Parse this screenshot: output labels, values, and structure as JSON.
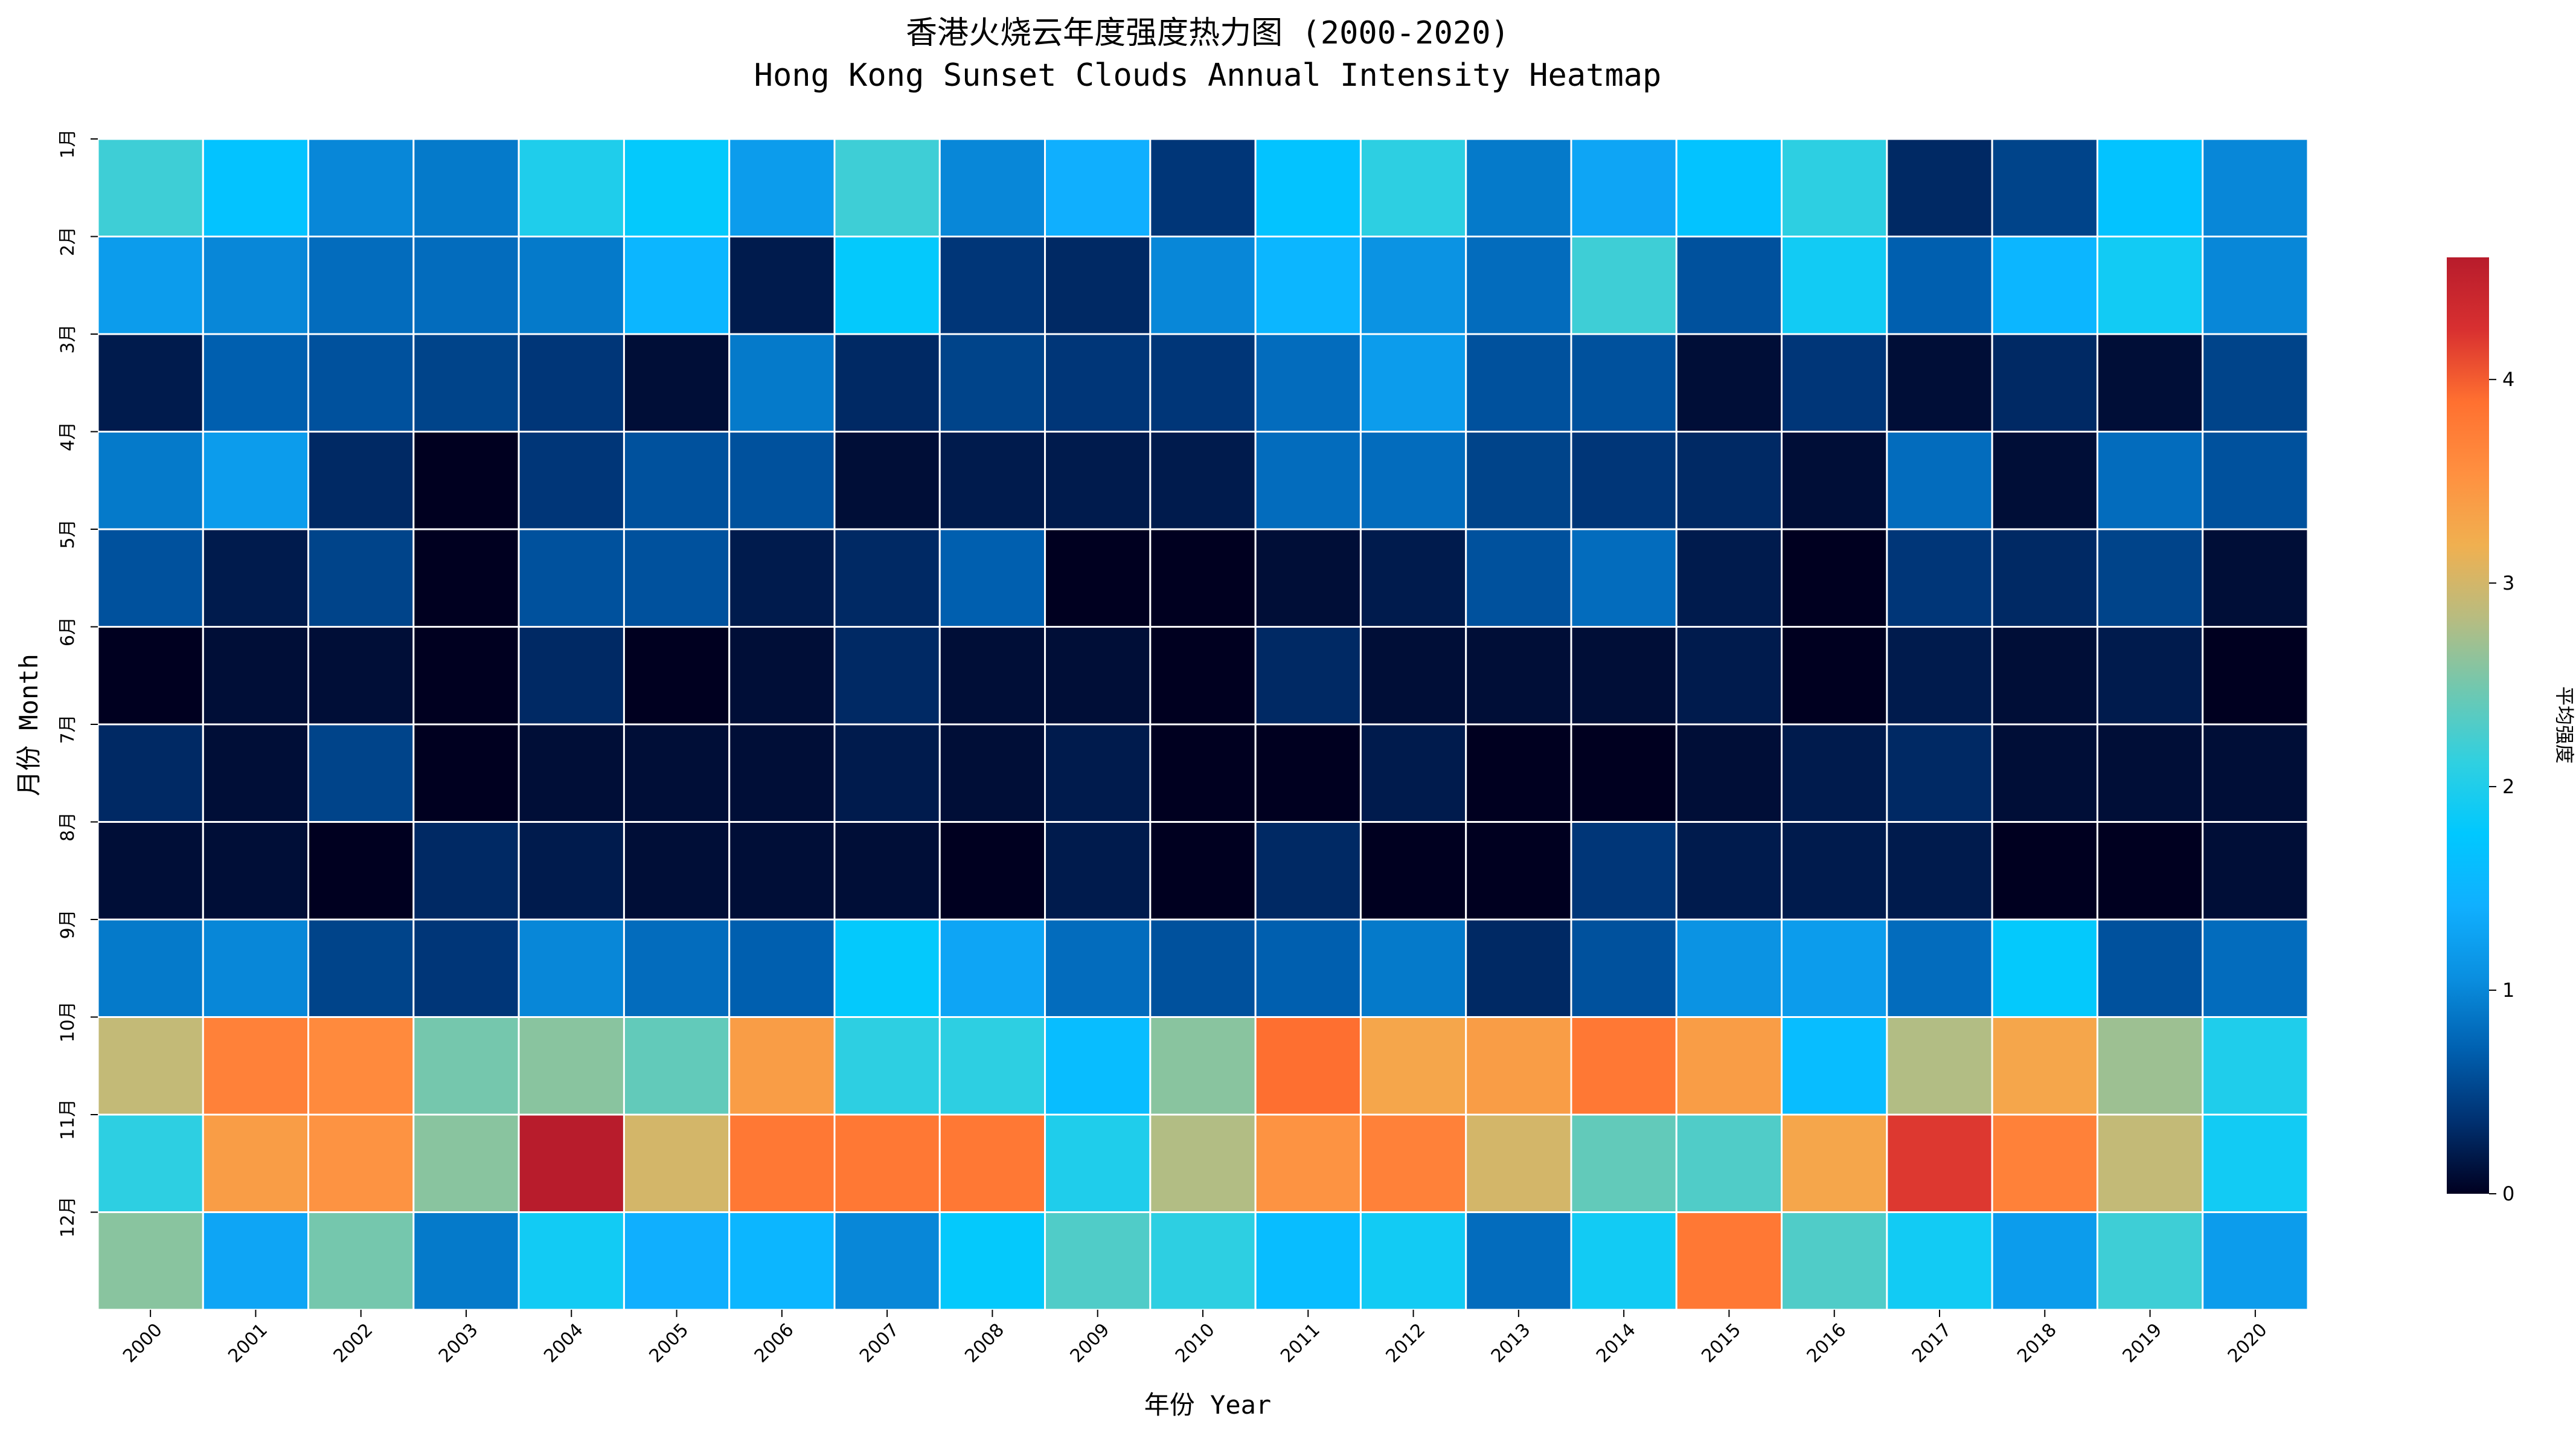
{
  "chart_data": {
    "type": "heatmap",
    "title": "香港火烧云年度强度热力图 (2000-2020)",
    "subtitle": "Hong Kong Sunset Clouds Annual Intensity Heatmap",
    "xlabel": "年份 Year",
    "ylabel": "月份 Month",
    "x": [
      "2000",
      "2001",
      "2002",
      "2003",
      "2004",
      "2005",
      "2006",
      "2007",
      "2008",
      "2009",
      "2010",
      "2011",
      "2012",
      "2013",
      "2014",
      "2015",
      "2016",
      "2017",
      "2018",
      "2019",
      "2020"
    ],
    "y": [
      "1月",
      "2月",
      "3月",
      "4月",
      "5月",
      "6月",
      "7月",
      "8月",
      "9月",
      "10月",
      "11月",
      "12月"
    ],
    "values": [
      [
        2.2,
        1.7,
        1.0,
        0.9,
        2.0,
        1.8,
        1.2,
        2.2,
        1.0,
        1.4,
        0.4,
        1.7,
        2.1,
        0.9,
        1.3,
        1.7,
        2.1,
        0.3,
        0.5,
        1.7,
        1.0
      ],
      [
        1.2,
        1.0,
        0.8,
        0.8,
        0.9,
        1.5,
        0.2,
        1.8,
        0.4,
        0.3,
        1.0,
        1.5,
        1.1,
        0.8,
        2.2,
        0.6,
        1.9,
        0.7,
        1.5,
        1.9,
        1.0
      ],
      [
        0.2,
        0.7,
        0.6,
        0.5,
        0.4,
        0.1,
        0.9,
        0.3,
        0.5,
        0.4,
        0.4,
        0.8,
        1.2,
        0.6,
        0.6,
        0.1,
        0.4,
        0.1,
        0.3,
        0.1,
        0.5
      ],
      [
        0.9,
        1.2,
        0.3,
        0.0,
        0.4,
        0.6,
        0.6,
        0.1,
        0.2,
        0.2,
        0.2,
        0.8,
        0.8,
        0.5,
        0.4,
        0.3,
        0.1,
        0.8,
        0.1,
        0.8,
        0.6
      ],
      [
        0.6,
        0.2,
        0.5,
        0.0,
        0.6,
        0.6,
        0.2,
        0.3,
        0.7,
        0.0,
        0.0,
        0.1,
        0.2,
        0.6,
        0.8,
        0.2,
        0.0,
        0.4,
        0.3,
        0.5,
        0.1
      ],
      [
        0.0,
        0.1,
        0.1,
        0.0,
        0.3,
        0.0,
        0.1,
        0.3,
        0.1,
        0.1,
        0.0,
        0.3,
        0.1,
        0.1,
        0.1,
        0.2,
        0.0,
        0.2,
        0.1,
        0.2,
        0.0
      ],
      [
        0.3,
        0.1,
        0.5,
        0.0,
        0.1,
        0.1,
        0.1,
        0.2,
        0.1,
        0.2,
        0.0,
        0.0,
        0.2,
        0.0,
        0.0,
        0.1,
        0.2,
        0.3,
        0.1,
        0.1,
        0.1
      ],
      [
        0.1,
        0.1,
        0.0,
        0.3,
        0.2,
        0.1,
        0.1,
        0.1,
        0.0,
        0.2,
        0.0,
        0.3,
        0.0,
        0.0,
        0.4,
        0.2,
        0.2,
        0.2,
        0.0,
        0.0,
        0.1
      ],
      [
        0.9,
        1.0,
        0.5,
        0.4,
        1.0,
        0.8,
        0.7,
        1.8,
        1.3,
        0.8,
        0.6,
        0.7,
        0.9,
        0.3,
        0.6,
        1.1,
        1.2,
        0.8,
        1.8,
        0.6,
        0.8
      ],
      [
        2.9,
        3.7,
        3.6,
        2.5,
        2.6,
        2.4,
        3.4,
        2.1,
        2.1,
        1.6,
        2.6,
        3.9,
        3.3,
        3.4,
        3.8,
        3.4,
        1.6,
        2.8,
        3.3,
        2.7,
        2.0
      ],
      [
        2.1,
        3.4,
        3.5,
        2.6,
        4.6,
        3.0,
        3.8,
        3.8,
        3.8,
        2.0,
        2.8,
        3.5,
        3.7,
        3.0,
        2.4,
        2.3,
        3.3,
        4.2,
        3.7,
        2.9,
        1.9
      ],
      [
        2.6,
        1.3,
        2.5,
        0.9,
        1.9,
        1.4,
        1.5,
        1.0,
        1.8,
        2.3,
        2.1,
        1.6,
        1.9,
        0.8,
        1.9,
        3.8,
        2.3,
        1.9,
        1.2,
        2.2,
        1.2
      ]
    ],
    "colorbar": {
      "label": "平均强度",
      "range": [
        0,
        4.6
      ],
      "ticks": [
        0,
        1,
        2,
        3,
        4
      ]
    },
    "colorscale": [
      "#000020",
      "#003070",
      "#0060b0",
      "#0a8fe0",
      "#10b0ff",
      "#00c8ff",
      "#30d0e0",
      "#70c8b0",
      "#b8bc80",
      "#f0b050",
      "#ff9040",
      "#ff7030",
      "#d83030",
      "#b81c2c"
    ],
    "grid": false,
    "legend": "colorbar-right"
  }
}
